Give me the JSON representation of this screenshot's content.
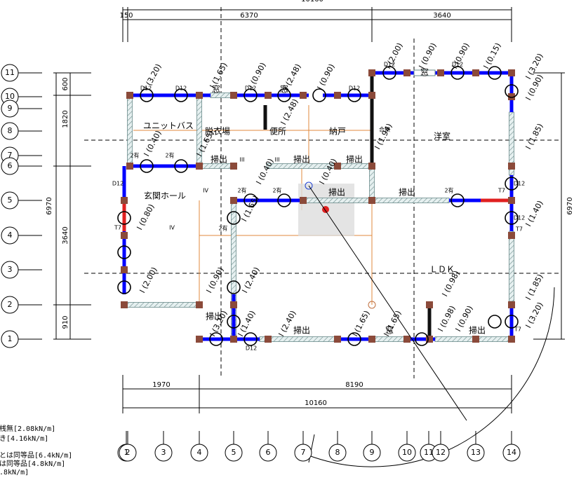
{
  "dimensions": {
    "top_overall": "10160",
    "top": [
      "150",
      "6370",
      "3640"
    ],
    "bottom": [
      "1970",
      "8190"
    ],
    "bottom_overall": "10160",
    "left": [
      "600",
      "1820",
      "3640",
      "910"
    ],
    "left_overall": "6970",
    "right_overall": "6970"
  },
  "grid_left": [
    "11",
    "10",
    "9",
    "8",
    "7",
    "6",
    "5",
    "4",
    "3",
    "2",
    "1"
  ],
  "grid_bottom": [
    "1",
    "2",
    "3",
    "4",
    "5",
    "6",
    "7",
    "8",
    "9",
    "10",
    "11",
    "12",
    "13",
    "14"
  ],
  "rooms": [
    "ユニットバス",
    "脱衣場",
    "便所",
    "納戸",
    "洋室",
    "玄関ホール",
    "ＬＤＫ"
  ],
  "openings": [
    "掃出",
    "掃出",
    "掃出",
    "掃出",
    "掃出",
    "掃出",
    "掃出",
    "掃出",
    "窓",
    "窓",
    "窓",
    "窓"
  ],
  "wall_labels": [
    "I (3.20)",
    "I (1.65)",
    "I (0.90)",
    "I (2.48)",
    "I (0.90)",
    "I (2.00)",
    "I (0.90)",
    "I (0.90)",
    "I (0.15)",
    "I (3.20)",
    "I (0.90)",
    "I (1.85)",
    "I (1.40)",
    "I (1.85)",
    "I (3.20)",
    "I (0.98)",
    "I (1.94)",
    "I (2.48)",
    "I (0.40)",
    "I (1.65)",
    "I (0.40)",
    "I (0.40)",
    "I (0.80)",
    "I (1.65)",
    "I (2.00)",
    "I (0.90)",
    "I (2.40)",
    "I (1.40)",
    "I (2.40)",
    "I (1.65)",
    "I (1.65)",
    "I (0.98)",
    "I (0.90)",
    "I (3.20)"
  ],
  "markers": [
    "D12",
    "D12",
    "D12",
    "D12",
    "D12",
    "D12",
    "D12",
    "D12",
    "D12",
    "D12",
    "T7",
    "T7",
    "T7",
    "T7",
    "2有",
    "2有",
    "2有",
    "2有",
    "2有",
    "2有",
    "合無",
    "III",
    "III",
    "IV",
    "IV"
  ],
  "legend": [
    "桟無[2.08kN/m]",
    "き[4.16kN/m]",
    "とは同等品[6.4kN/m]",
    "は同等品[4.8kN/m]",
    ".8kN/m]"
  ]
}
